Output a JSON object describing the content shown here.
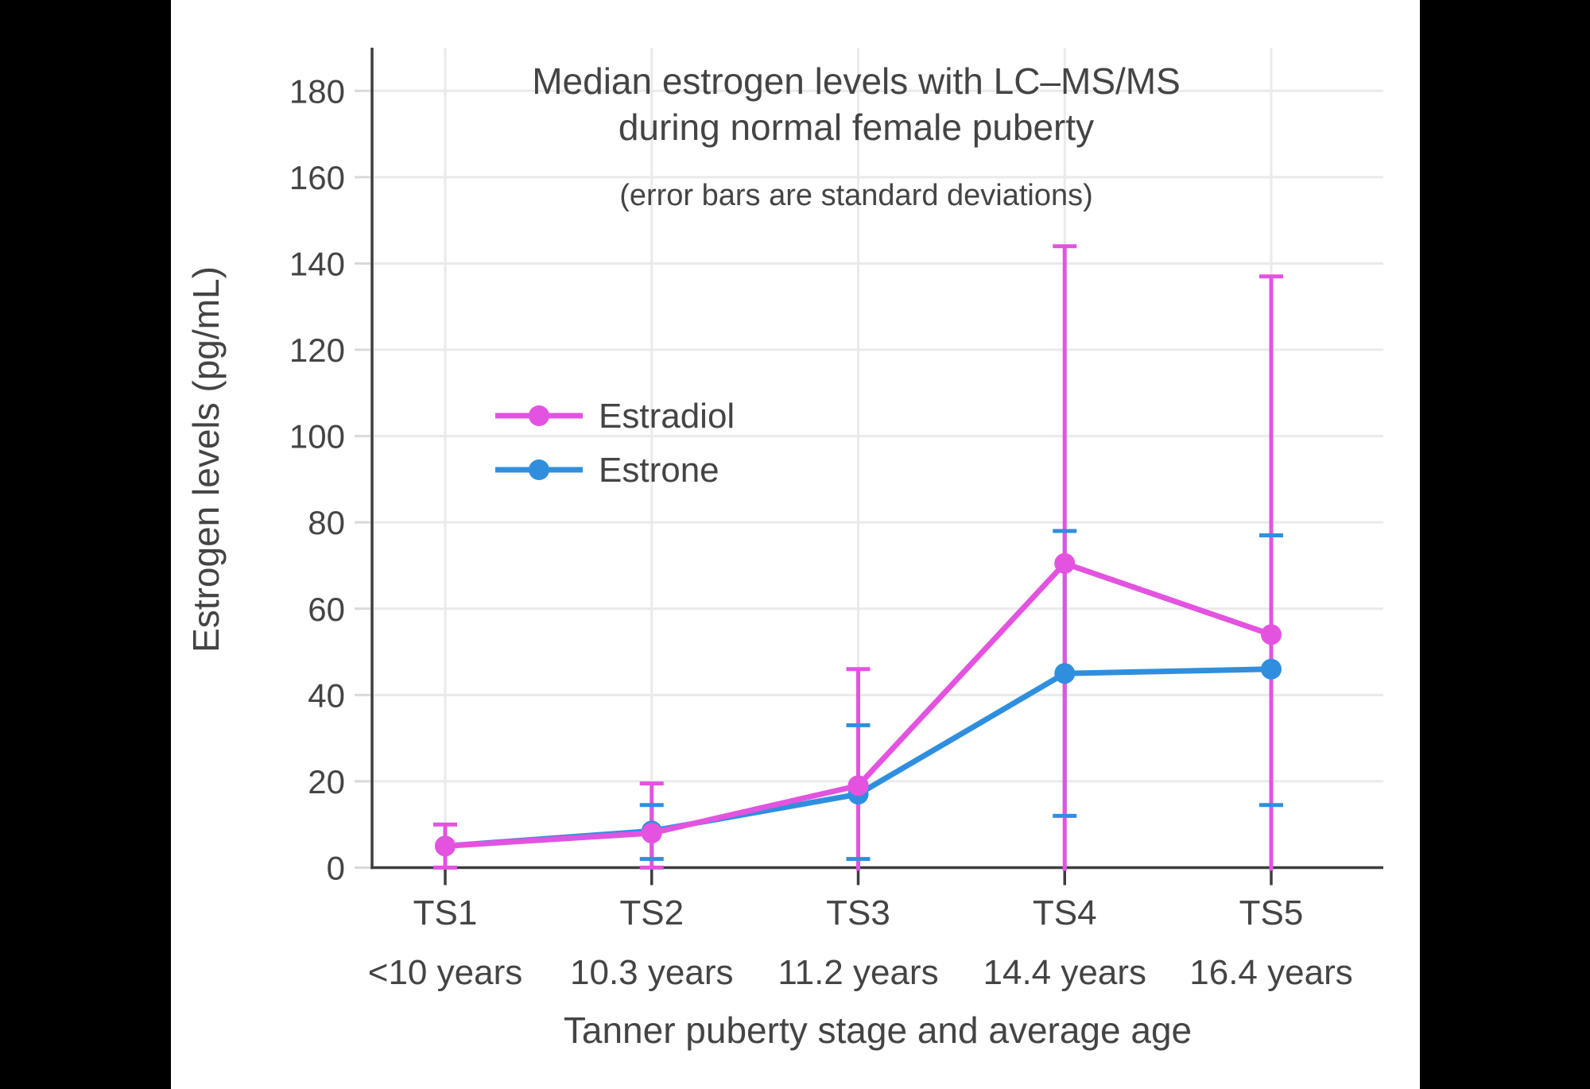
{
  "colors": {
    "background": "#000000",
    "panel": "#ffffff",
    "axis": "#3e3e3e",
    "grid": "#eaeaea",
    "tick": "#d9d9d9",
    "text": "#444444",
    "estradiol": "#e353e0",
    "estrone": "#2f8fde"
  },
  "chart_data": {
    "type": "line",
    "title": "Median estrogen levels with LC–MS/MS during normal female puberty",
    "title_lines": [
      "Median estrogen levels with LC–MS/MS",
      "during normal female puberty"
    ],
    "subtitle": "(error bars are standard deviations)",
    "xlabel": "Tanner puberty stage and average age",
    "ylabel": "Estrogen levels (pg/mL)",
    "categories": [
      "TS1",
      "TS2",
      "TS3",
      "TS4",
      "TS5"
    ],
    "category_ages": [
      "<10 years",
      "10.3 years",
      "11.2 years",
      "14.4 years",
      "16.4 years"
    ],
    "y_ticks": [
      0,
      20,
      40,
      60,
      80,
      100,
      120,
      140,
      160,
      180
    ],
    "ylim": [
      0,
      190
    ],
    "grid": true,
    "legend_position": "inside-upper-left",
    "series": [
      {
        "name": "Estradiol",
        "color": "#e353e0",
        "values": [
          5,
          8,
          19,
          70.5,
          54
        ],
        "error_high": [
          10,
          19.5,
          46,
          144,
          137
        ],
        "error_low": [
          0,
          0,
          0,
          0,
          0
        ],
        "error_low_cap": [
          true,
          true,
          false,
          false,
          false
        ]
      },
      {
        "name": "Estrone",
        "color": "#2f8fde",
        "values": [
          5,
          8.5,
          17,
          45,
          46
        ],
        "error_high": [
          null,
          14.5,
          33,
          78,
          77
        ],
        "error_low": [
          null,
          2,
          2,
          12,
          14.5
        ]
      }
    ]
  }
}
